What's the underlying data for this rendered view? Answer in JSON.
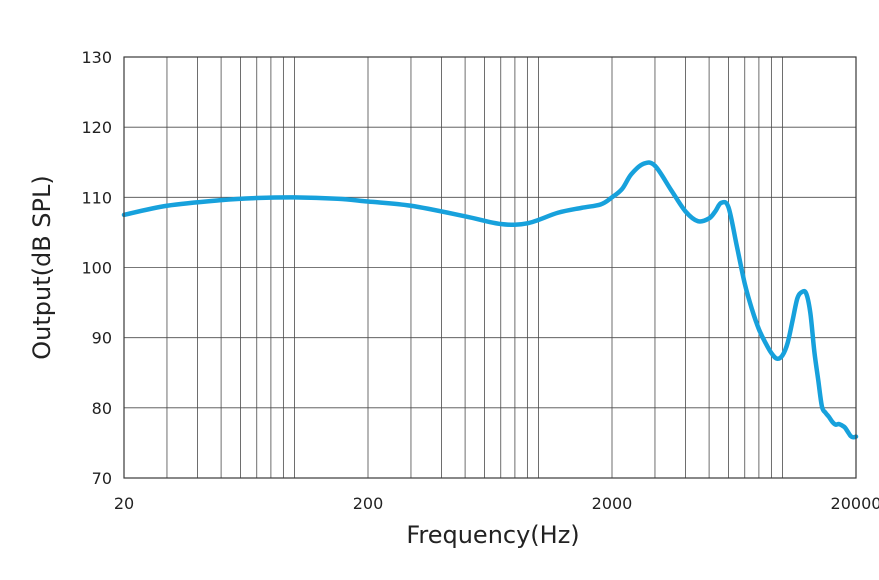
{
  "chart_data": {
    "type": "line",
    "title": "",
    "xlabel": "Frequency(Hz)",
    "ylabel": "Output(dB SPL)",
    "x_scale": "log",
    "xlim": [
      20,
      20000
    ],
    "ylim": [
      70,
      130
    ],
    "grid": true,
    "x_ticks": [
      20,
      200,
      2000,
      20000
    ],
    "x_tick_labels": [
      "20",
      "200",
      "2000",
      "20000"
    ],
    "y_ticks": [
      70,
      80,
      90,
      100,
      110,
      120,
      130
    ],
    "y_tick_labels": [
      "70",
      "80",
      "90",
      "100",
      "110",
      "120",
      "130"
    ],
    "series": [
      {
        "color": "#17a1dc",
        "x": [
          20,
          30,
          50,
          70,
          100,
          150,
          200,
          300,
          500,
          700,
          900,
          1200,
          1500,
          1800,
          2000,
          2200,
          2400,
          2700,
          3000,
          3500,
          4000,
          4500,
          5000,
          5300,
          5600,
          6000,
          6500,
          7000,
          7500,
          8000,
          8500,
          9000,
          9500,
          10000,
          10500,
          11000,
          11500,
          12000,
          12500,
          13000,
          13500,
          14000,
          14500,
          15000,
          15500,
          16000,
          16500,
          17000,
          17500,
          18000,
          18500,
          19000,
          19500,
          20000
        ],
        "y": [
          107.5,
          108.8,
          109.6,
          109.9,
          110.0,
          109.8,
          109.4,
          108.8,
          107.3,
          106.2,
          106.3,
          107.8,
          108.5,
          109.0,
          110.0,
          111.2,
          113.3,
          114.8,
          114.5,
          111.0,
          108.0,
          106.6,
          107.0,
          108.0,
          109.2,
          108.6,
          103.0,
          97.7,
          94.0,
          91.2,
          89.3,
          87.8,
          87.0,
          87.5,
          89.3,
          92.5,
          95.6,
          96.5,
          96.3,
          93.5,
          88.0,
          84.0,
          80.2,
          79.3,
          78.7,
          78.0,
          77.6,
          77.7,
          77.5,
          77.2,
          76.6,
          76.0,
          75.8,
          75.9
        ]
      }
    ]
  }
}
